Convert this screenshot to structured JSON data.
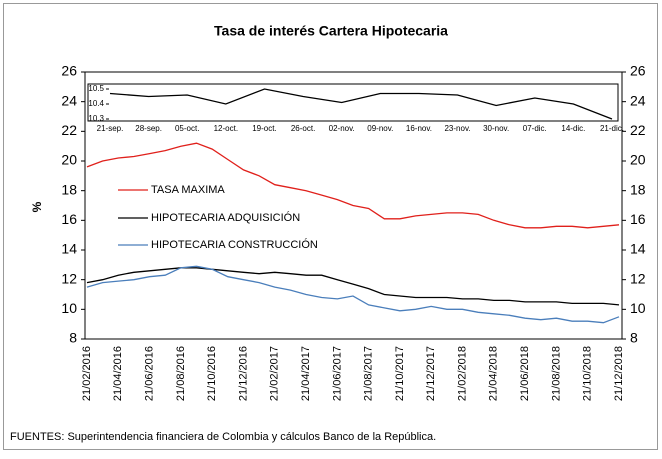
{
  "chart_data": [
    {
      "type": "line",
      "title": "Tasa de interés Cartera Hipotecaria",
      "ylabel": "%",
      "categories": [
        "21/02/2016",
        null,
        "21/04/2016",
        null,
        "21/06/2016",
        null,
        "21/08/2016",
        null,
        "21/10/2016",
        null,
        "21/12/2016",
        null,
        "21/02/2017",
        null,
        "21/04/2017",
        null,
        "21/06/2017",
        null,
        "21/08/2017",
        null,
        "21/10/2017",
        null,
        "21/12/2017",
        null,
        "21/02/2018",
        null,
        "21/04/2018",
        null,
        "21/06/2018",
        null,
        "21/08/2018",
        null,
        "21/10/2018",
        null,
        "21/12/2018"
      ],
      "series": [
        {
          "name": "TASA MAXIMA",
          "color": "#e0201b",
          "values": [
            19.6,
            20.0,
            20.2,
            20.3,
            20.5,
            20.7,
            21.0,
            21.2,
            20.8,
            20.1,
            19.4,
            19.0,
            18.4,
            18.2,
            18.0,
            17.7,
            17.4,
            17.0,
            16.8,
            16.1,
            16.1,
            16.3,
            16.4,
            16.5,
            16.5,
            16.4,
            16.0,
            15.7,
            15.5,
            15.5,
            15.6,
            15.6,
            15.5,
            15.6,
            15.7
          ]
        },
        {
          "name": "HIPOTECARIA ADQUISICIÓN",
          "color": "#000000",
          "values": [
            11.8,
            12.0,
            12.3,
            12.5,
            12.6,
            12.7,
            12.8,
            12.8,
            12.7,
            12.6,
            12.5,
            12.4,
            12.5,
            12.4,
            12.3,
            12.3,
            12.0,
            11.7,
            11.4,
            11.0,
            10.9,
            10.8,
            10.8,
            10.8,
            10.7,
            10.7,
            10.6,
            10.6,
            10.5,
            10.5,
            10.5,
            10.4,
            10.4,
            10.4,
            10.3
          ]
        },
        {
          "name": "HIPOTECARIA CONSTRUCCIÓN",
          "color": "#4a7ebb",
          "values": [
            11.5,
            11.8,
            11.9,
            12.0,
            12.2,
            12.3,
            12.8,
            12.9,
            12.7,
            12.2,
            12.0,
            11.8,
            11.5,
            11.3,
            11.0,
            10.8,
            10.7,
            10.9,
            10.3,
            10.1,
            9.9,
            10.0,
            10.2,
            10.0,
            10.0,
            9.8,
            9.7,
            9.6,
            9.4,
            9.3,
            9.4,
            9.2,
            9.2,
            9.1,
            9.5
          ]
        }
      ],
      "ylim": [
        8,
        26
      ],
      "yticks": [
        8,
        10,
        12,
        14,
        16,
        18,
        20,
        22,
        24,
        26
      ],
      "y2lim": [
        8,
        26
      ],
      "y2ticks": [
        8,
        10,
        12,
        14,
        16,
        18,
        20,
        22,
        24,
        26
      ],
      "source": "FUENTES: Superintendencia financiera de Colombia y cálculos Banco de la República."
    },
    {
      "type": "line",
      "categories": [
        "21-sep.",
        "28-sep.",
        "05-oct.",
        "12-oct.",
        "19-oct.",
        "26-oct.",
        "02-nov.",
        "09-nov.",
        "16-nov.",
        "23-nov.",
        "30-nov.",
        "07-dic.",
        "14-dic.",
        "21-dic."
      ],
      "series": [
        {
          "name": null,
          "color": "#000000",
          "values": [
            10.47,
            10.45,
            10.46,
            10.4,
            10.5,
            10.45,
            10.41,
            10.47,
            10.47,
            10.46,
            10.39,
            10.44,
            10.4,
            10.3
          ]
        }
      ],
      "ylim": [
        10.3,
        10.52
      ],
      "yticks": [
        10.3,
        10.4,
        10.5
      ]
    }
  ]
}
